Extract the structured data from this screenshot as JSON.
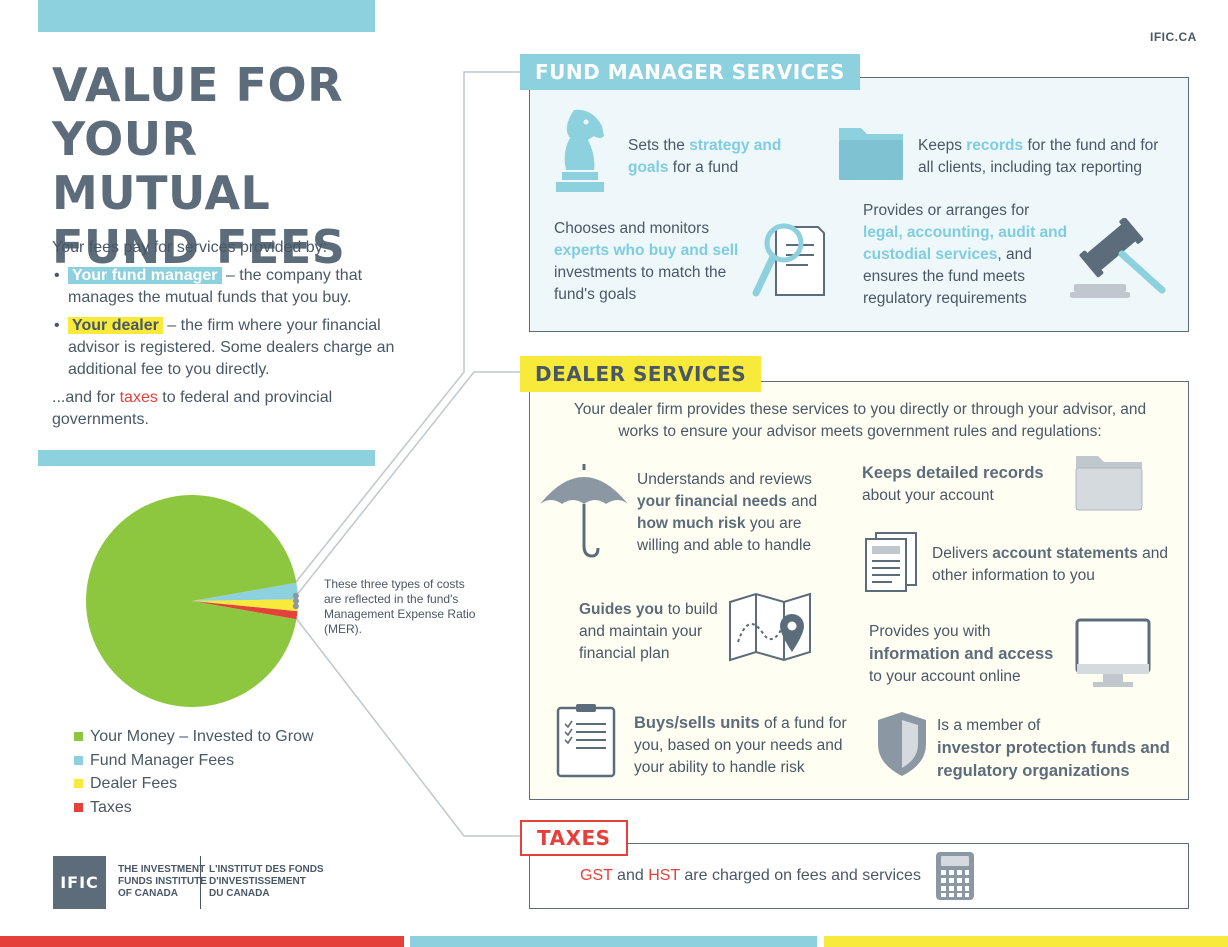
{
  "site": "IFIC.CA",
  "title_lines": [
    "VALUE FOR",
    "YOUR MUTUAL",
    "FUND FEES"
  ],
  "intro": {
    "lead": "Your fees pay for services provided by:",
    "b1_term": "Your fund manager",
    "b1_text": " – the company that manages the mutual funds that you buy.",
    "b2_term": "Your dealer",
    "b2_text": " – the firm where your financial advisor is registered. Some dealers charge an additional fee to you directly.",
    "taxes_pre": "...and for ",
    "taxes_word": "taxes",
    "taxes_post": " to federal and provincial governments."
  },
  "chart_data": {
    "type": "pie",
    "title": "",
    "slices": [
      {
        "label": "Your Money – Invested to Grow",
        "value": 94.5,
        "color": "#8dc63f"
      },
      {
        "label": "Fund Manager Fees",
        "value": 2.5,
        "color": "#8dd0de"
      },
      {
        "label": "Dealer Fees",
        "value": 1.8,
        "color": "#f7ea3a"
      },
      {
        "label": "Taxes",
        "value": 1.2,
        "color": "#e5413a"
      }
    ],
    "legend_position": "bottom"
  },
  "mer_note": "These three types of costs are reflected in the fund's Management Expense Ratio (MER).",
  "fund_manager": {
    "heading": "FUND MANAGER SERVICES",
    "s1_pre": "Sets the ",
    "s1_hl": "strategy and goals",
    "s1_post": " for a fund",
    "s2_pre": "Keeps ",
    "s2_hl": "records",
    "s2_post": " for the fund and for all clients, including tax reporting",
    "s3_pre": "Chooses and monitors ",
    "s3_hl": "experts who buy and sell",
    "s3_post": " investments to match the fund's goals",
    "s4_pre": "Provides or arranges for ",
    "s4_hl": "legal, accounting, audit and custodial services",
    "s4_post": ", and ensures the fund meets regulatory requirements"
  },
  "dealer": {
    "heading": "DEALER SERVICES",
    "intro": "Your dealer firm provides these services to you directly or through your advisor, and works to ensure your advisor meets government rules and regulations:",
    "d1_pre": "Understands and reviews ",
    "d1_b1": "your financial needs",
    "d1_mid": " and ",
    "d1_b2": "how much risk",
    "d1_post": " you are willing and able to handle",
    "d2_b": "Keeps detailed records",
    "d2_post": " about your account",
    "d3_pre": "Delivers ",
    "d3_b": "account statements",
    "d3_post": " and other information to you",
    "d4_b": "Guides you",
    "d4_post": " to build and maintain your financial plan",
    "d5_pre": "Provides you with ",
    "d5_b": "information and access",
    "d5_post": " to your account online",
    "d6_b": "Buys/sells units",
    "d6_post": " of a fund for you, based on your needs and your ability to handle risk",
    "d7_pre": "Is a member of ",
    "d7_b": "investor protection funds and regulatory organizations"
  },
  "taxes": {
    "heading": "TAXES",
    "gst": "GST",
    "and": " and ",
    "hst": "HST",
    "post": " are charged on fees and services"
  },
  "logo": {
    "mark": "IFIC",
    "en": "THE INVESTMENT\nFUNDS INSTITUTE\nOF CANADA",
    "fr": "L'INSTITUT DES FONDS\nD'INVESTISSEMENT\nDU CANADA"
  },
  "colors": {
    "blue": "#8dd0de",
    "yellow": "#f7ea3a",
    "red": "#e5413a",
    "green": "#8dc63f",
    "slate": "#5d6c7a"
  }
}
